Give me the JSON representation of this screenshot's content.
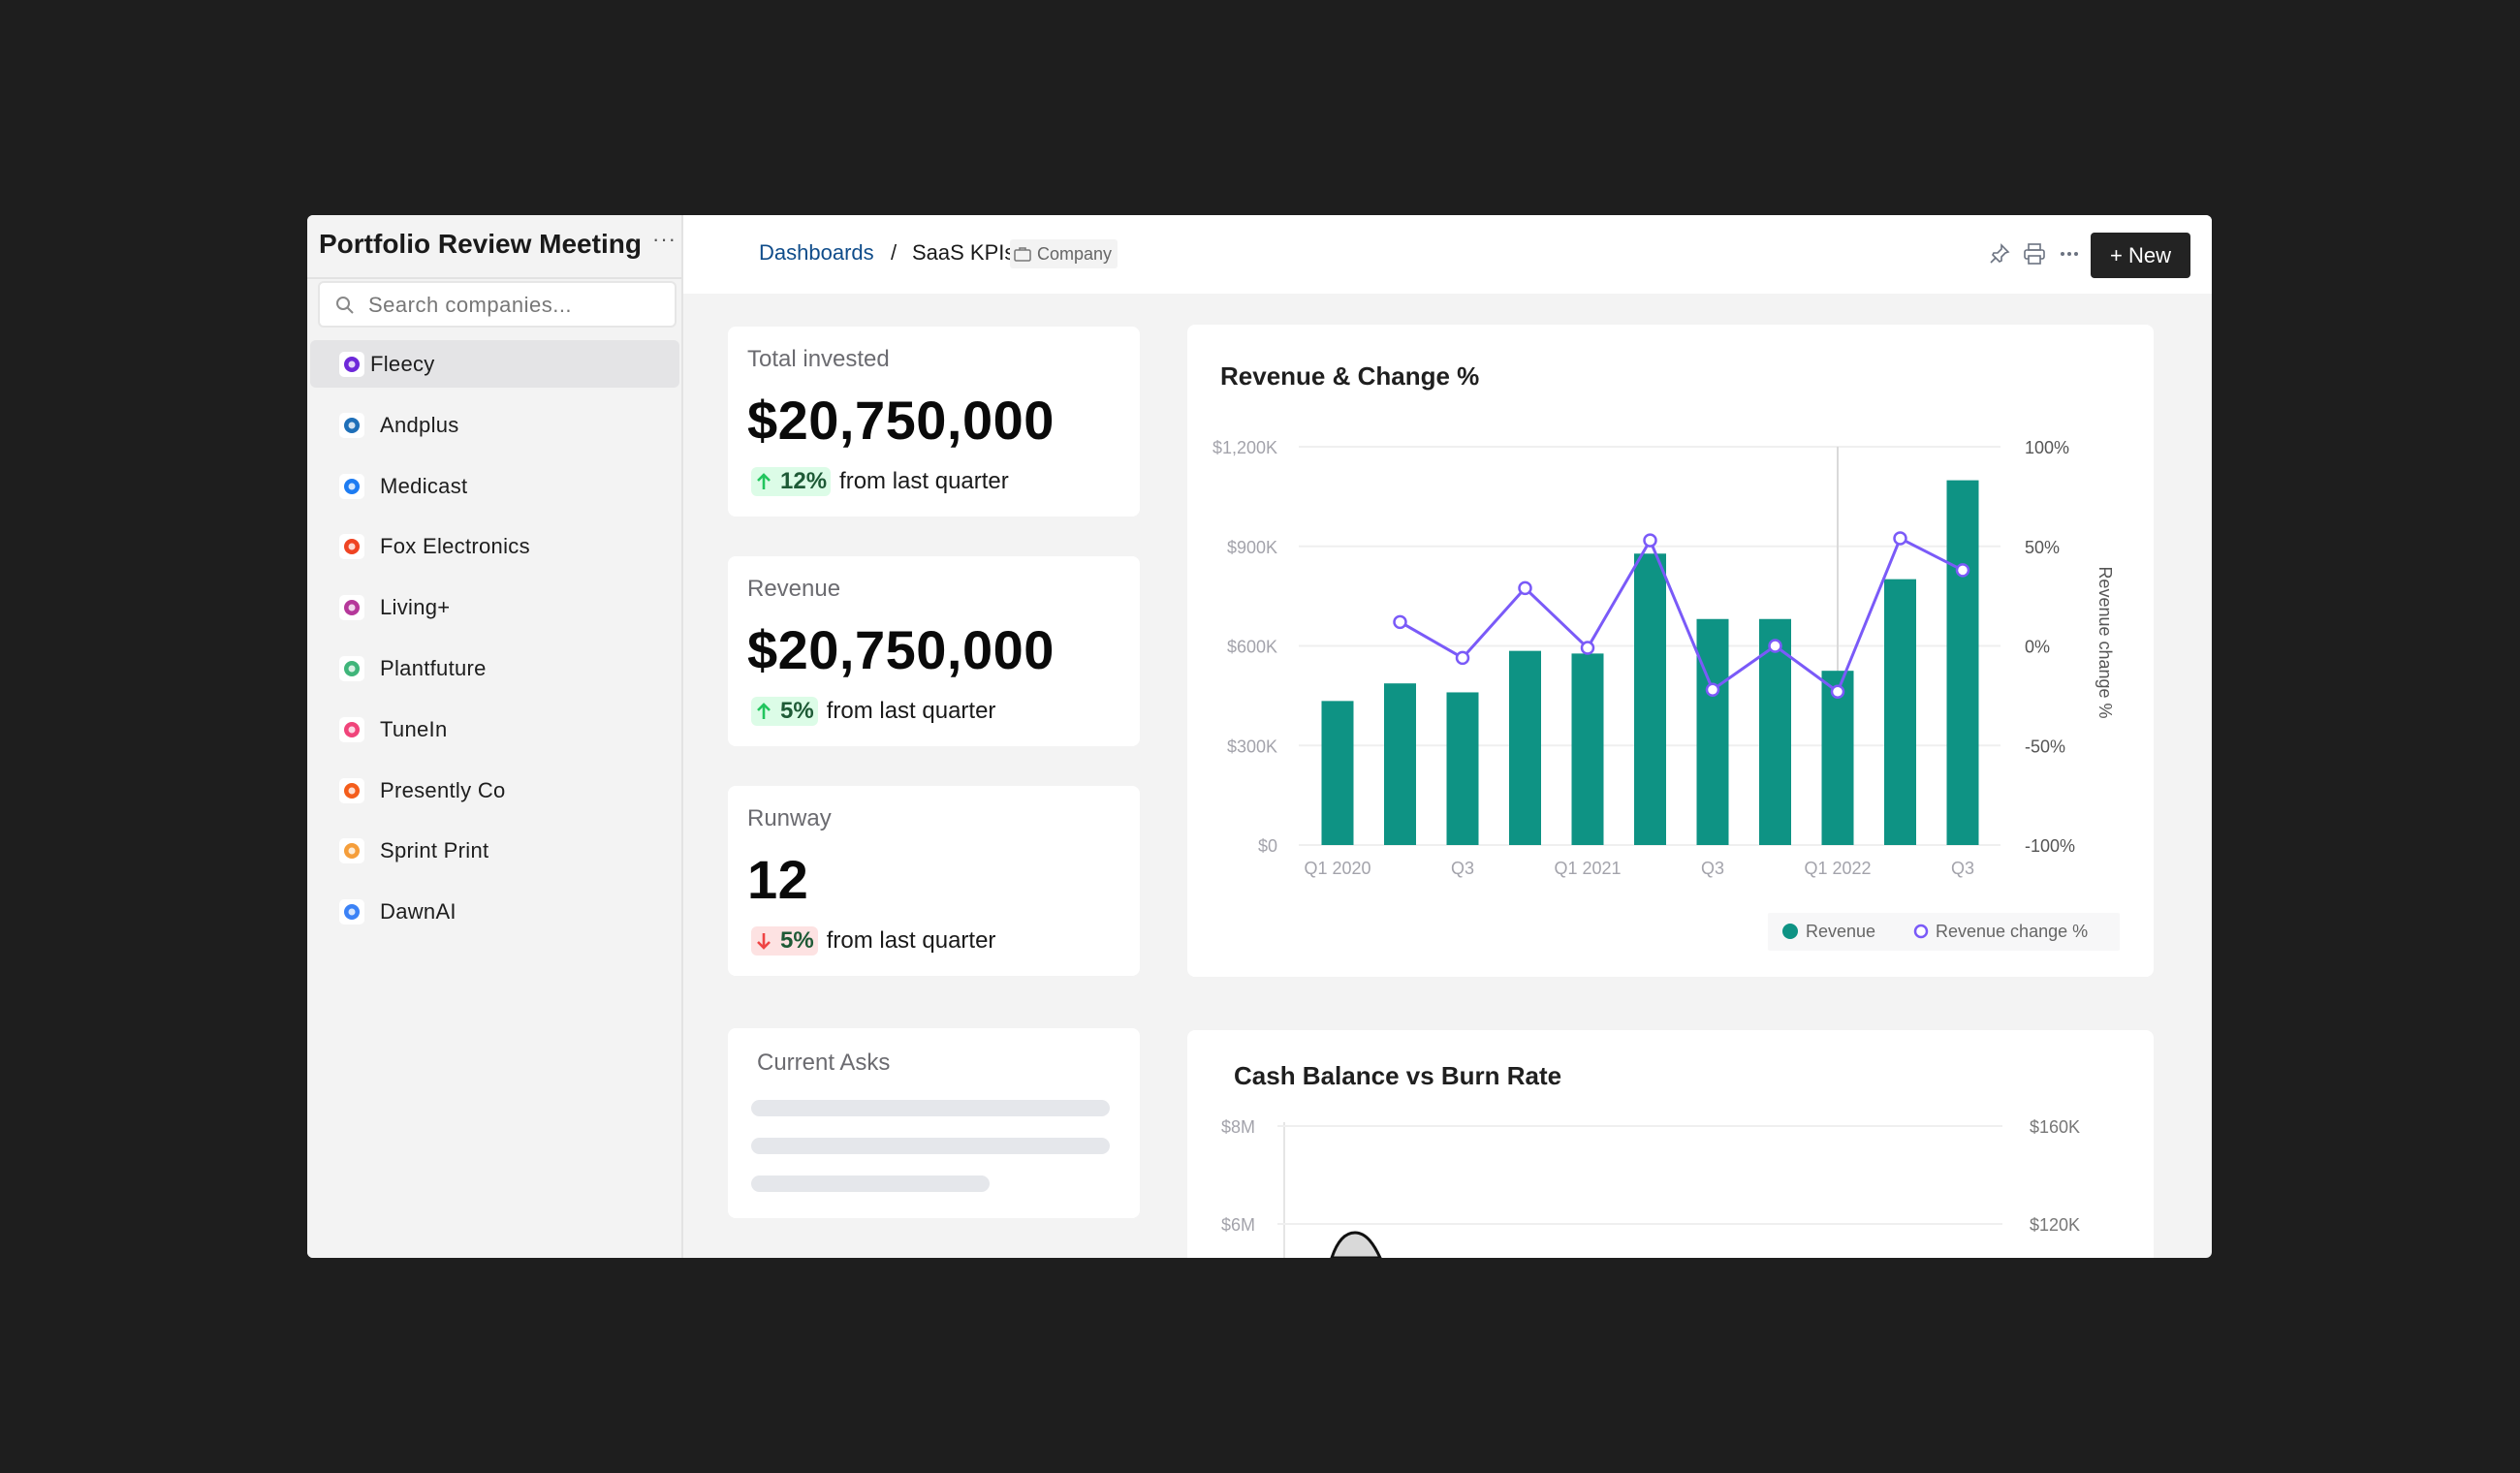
{
  "sidebar": {
    "title": "Portfolio Review Meeting",
    "more_label": "···",
    "search_placeholder": "Search companies...",
    "items": [
      {
        "label": "Fleecy",
        "active": true,
        "color": "#6d28d9"
      },
      {
        "label": "Andplus",
        "color": "#1e6fb8"
      },
      {
        "label": "Medicast",
        "color": "#1d7cf2"
      },
      {
        "label": "Fox Electronics",
        "color": "#ef4423"
      },
      {
        "label": "Living+",
        "color": "#b5389a"
      },
      {
        "label": "Plantfuture",
        "color": "#3fb57a"
      },
      {
        "label": "TuneIn",
        "color": "#f0447a"
      },
      {
        "label": "Presently Co",
        "color": "#f45d1b"
      },
      {
        "label": "Sprint Print",
        "color": "#f59e3b"
      },
      {
        "label": "DawnAI",
        "color": "#3b82f6"
      }
    ]
  },
  "header": {
    "breadcrumb_root": "Dashboards",
    "breadcrumb_sep": "/",
    "breadcrumb_current": "SaaS KPIs",
    "tag": "Company",
    "new_button": "+ New"
  },
  "kpis": [
    {
      "label": "Total invested",
      "value": "$20,750,000",
      "delta": "12%",
      "direction": "up",
      "suffix": "from last quarter"
    },
    {
      "label": "Revenue",
      "value": "$20,750,000",
      "delta": "5%",
      "direction": "up",
      "suffix": "from last quarter"
    },
    {
      "label": "Runway",
      "value": "12",
      "delta": "5%",
      "direction": "down",
      "suffix": "from last quarter"
    }
  ],
  "current_asks": {
    "title": "Current Asks"
  },
  "colors": {
    "bar": "#0e9384",
    "line": "#7a5af8",
    "up": "#22c55e",
    "down": "#ef4444"
  },
  "chart_data": [
    {
      "type": "bar",
      "title": "Revenue & Change %",
      "categories": [
        "Q1 2020",
        "Q2 2020",
        "Q3 2020",
        "Q4 2020",
        "Q1 2021",
        "Q2 2021",
        "Q3 2021",
        "Q4 2021",
        "Q1 2022",
        "Q2 2022",
        "Q3 2022"
      ],
      "x_tick_labels": [
        "Q1 2020",
        "",
        "Q3",
        "",
        "Q1 2021",
        "",
        "Q3",
        "",
        "Q1 2022",
        "",
        "Q3"
      ],
      "series": [
        {
          "name": "Revenue",
          "type": "bar",
          "axis": "left",
          "values": [
            434000,
            487000,
            460000,
            585000,
            577000,
            878000,
            681000,
            681000,
            525000,
            801000,
            1099000
          ]
        },
        {
          "name": "Revenue  change %",
          "type": "line",
          "axis": "right",
          "values": [
            null,
            12,
            -6,
            29,
            -1,
            53,
            -22,
            0,
            -23,
            54,
            38
          ]
        }
      ],
      "y_left": {
        "ticks": [
          "$0",
          "$300K",
          "$600K",
          "$900K",
          "$1,200K"
        ],
        "range": [
          0,
          1200000
        ]
      },
      "y_right": {
        "label": "Revenue  change %",
        "ticks": [
          "-100%",
          "-50%",
          "0%",
          "50%",
          "100%"
        ],
        "range": [
          -100,
          100
        ]
      },
      "grid": true,
      "legend": "bottom-right",
      "highlighted_category": "Q1 2022"
    },
    {
      "type": "area",
      "title": "Cash Balance vs Burn Rate",
      "y_left": {
        "ticks": [
          "$8M",
          "$6M"
        ]
      },
      "y_right": {
        "ticks": [
          "$160K",
          "$120K"
        ]
      },
      "grid": true
    }
  ]
}
